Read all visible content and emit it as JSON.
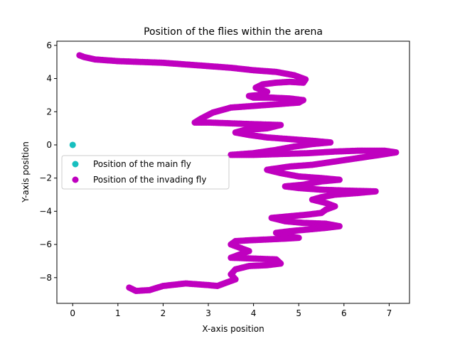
{
  "chart_data": {
    "type": "scatter",
    "title": "Position of the flies within the arena",
    "xlabel": "X-axis position",
    "ylabel": "Y-axis position",
    "xlim": [
      -0.35,
      7.45
    ],
    "ylim": [
      -9.55,
      6.25
    ],
    "xticks": [
      0,
      1,
      2,
      3,
      4,
      5,
      6,
      7
    ],
    "yticks": [
      -8,
      -6,
      -4,
      -2,
      0,
      2,
      4,
      6
    ],
    "grid": false,
    "legend_position": "center-left",
    "series": [
      {
        "name": "Position of the main fly",
        "color": "#17bfbf",
        "points": [
          [
            0.0,
            0.0
          ]
        ]
      },
      {
        "name": "Position of the invading fly",
        "color": "#bf00bf",
        "path": [
          [
            0.15,
            5.4
          ],
          [
            0.25,
            5.3
          ],
          [
            0.5,
            5.15
          ],
          [
            1.0,
            5.05
          ],
          [
            1.5,
            5.0
          ],
          [
            2.0,
            4.95
          ],
          [
            2.5,
            4.85
          ],
          [
            3.0,
            4.75
          ],
          [
            3.5,
            4.65
          ],
          [
            4.0,
            4.5
          ],
          [
            4.5,
            4.4
          ],
          [
            4.9,
            4.2
          ],
          [
            5.15,
            3.95
          ],
          [
            5.1,
            3.75
          ],
          [
            4.8,
            3.8
          ],
          [
            4.5,
            3.75
          ],
          [
            4.2,
            3.65
          ],
          [
            4.05,
            3.45
          ],
          [
            4.3,
            3.2
          ],
          [
            4.1,
            3.0
          ],
          [
            3.9,
            2.95
          ],
          [
            4.0,
            2.85
          ],
          [
            4.4,
            2.85
          ],
          [
            4.8,
            2.8
          ],
          [
            5.1,
            2.7
          ],
          [
            5.0,
            2.55
          ],
          [
            4.5,
            2.45
          ],
          [
            4.0,
            2.35
          ],
          [
            3.5,
            2.25
          ],
          [
            3.1,
            1.95
          ],
          [
            2.85,
            1.6
          ],
          [
            2.7,
            1.35
          ],
          [
            3.0,
            1.35
          ],
          [
            3.5,
            1.3
          ],
          [
            4.0,
            1.25
          ],
          [
            4.6,
            1.2
          ],
          [
            4.3,
            1.0
          ],
          [
            3.8,
            0.9
          ],
          [
            3.6,
            0.75
          ],
          [
            3.9,
            0.6
          ],
          [
            4.3,
            0.45
          ],
          [
            4.8,
            0.35
          ],
          [
            5.3,
            0.25
          ],
          [
            5.7,
            0.15
          ],
          [
            5.3,
            0.05
          ],
          [
            4.9,
            -0.1
          ],
          [
            4.5,
            -0.3
          ],
          [
            4.0,
            -0.5
          ],
          [
            3.5,
            -0.6
          ],
          [
            4.0,
            -0.6
          ],
          [
            4.6,
            -0.55
          ],
          [
            5.2,
            -0.5
          ],
          [
            5.8,
            -0.4
          ],
          [
            6.3,
            -0.35
          ],
          [
            6.9,
            -0.35
          ],
          [
            7.15,
            -0.45
          ],
          [
            6.8,
            -0.6
          ],
          [
            6.3,
            -0.8
          ],
          [
            5.8,
            -1.0
          ],
          [
            5.3,
            -1.2
          ],
          [
            4.8,
            -1.3
          ],
          [
            4.3,
            -1.5
          ],
          [
            4.6,
            -1.7
          ],
          [
            5.0,
            -1.9
          ],
          [
            5.5,
            -2.0
          ],
          [
            5.9,
            -2.1
          ],
          [
            5.5,
            -2.2
          ],
          [
            5.1,
            -2.4
          ],
          [
            4.7,
            -2.5
          ],
          [
            5.0,
            -2.6
          ],
          [
            5.5,
            -2.7
          ],
          [
            6.0,
            -2.75
          ],
          [
            6.7,
            -2.8
          ],
          [
            6.3,
            -2.9
          ],
          [
            5.8,
            -3.0
          ],
          [
            5.5,
            -3.15
          ],
          [
            5.3,
            -3.3
          ],
          [
            5.6,
            -3.5
          ],
          [
            5.8,
            -3.7
          ],
          [
            5.6,
            -3.9
          ],
          [
            5.5,
            -4.1
          ],
          [
            5.2,
            -4.2
          ],
          [
            4.8,
            -4.3
          ],
          [
            4.4,
            -4.4
          ],
          [
            4.7,
            -4.6
          ],
          [
            5.1,
            -4.7
          ],
          [
            5.6,
            -4.75
          ],
          [
            5.9,
            -4.9
          ],
          [
            5.6,
            -5.0
          ],
          [
            5.2,
            -5.1
          ],
          [
            4.8,
            -5.2
          ],
          [
            4.5,
            -5.3
          ],
          [
            4.8,
            -5.5
          ],
          [
            5.0,
            -5.6
          ],
          [
            4.7,
            -5.65
          ],
          [
            4.3,
            -5.7
          ],
          [
            3.9,
            -5.75
          ],
          [
            3.6,
            -5.8
          ],
          [
            3.5,
            -6.0
          ],
          [
            3.7,
            -6.2
          ],
          [
            3.9,
            -6.4
          ],
          [
            3.7,
            -6.6
          ],
          [
            3.5,
            -6.8
          ],
          [
            4.0,
            -6.85
          ],
          [
            4.5,
            -6.9
          ],
          [
            4.6,
            -7.15
          ],
          [
            4.3,
            -7.25
          ],
          [
            3.9,
            -7.3
          ],
          [
            3.6,
            -7.5
          ],
          [
            3.5,
            -7.8
          ],
          [
            3.6,
            -8.1
          ],
          [
            3.4,
            -8.3
          ],
          [
            3.2,
            -8.5
          ],
          [
            3.0,
            -8.45
          ],
          [
            2.5,
            -8.35
          ],
          [
            2.0,
            -8.5
          ],
          [
            1.7,
            -8.75
          ],
          [
            1.4,
            -8.8
          ],
          [
            1.25,
            -8.6
          ]
        ]
      }
    ]
  }
}
